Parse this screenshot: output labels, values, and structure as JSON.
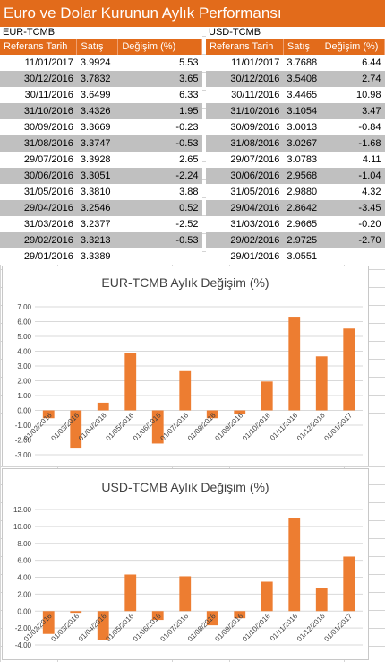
{
  "title": "Euro ve Dolar Kurunun Aylık Performansı",
  "tables": [
    {
      "label": "EUR-TCMB",
      "headers": [
        "Referans Tarih",
        "Satış",
        "Değişim (%)"
      ],
      "rows": [
        {
          "date": "11/01/2017",
          "sell": "3.9924",
          "chg": "5.53"
        },
        {
          "date": "30/12/2016",
          "sell": "3.7832",
          "chg": "3.65"
        },
        {
          "date": "30/11/2016",
          "sell": "3.6499",
          "chg": "6.33"
        },
        {
          "date": "31/10/2016",
          "sell": "3.4326",
          "chg": "1.95"
        },
        {
          "date": "30/09/2016",
          "sell": "3.3669",
          "chg": "-0.23"
        },
        {
          "date": "31/08/2016",
          "sell": "3.3747",
          "chg": "-0.53"
        },
        {
          "date": "29/07/2016",
          "sell": "3.3928",
          "chg": "2.65"
        },
        {
          "date": "30/06/2016",
          "sell": "3.3051",
          "chg": "-2.24"
        },
        {
          "date": "31/05/2016",
          "sell": "3.3810",
          "chg": "3.88"
        },
        {
          "date": "29/04/2016",
          "sell": "3.2546",
          "chg": "0.52"
        },
        {
          "date": "31/03/2016",
          "sell": "3.2377",
          "chg": "-2.52"
        },
        {
          "date": "29/02/2016",
          "sell": "3.3213",
          "chg": "-0.53"
        },
        {
          "date": "29/01/2016",
          "sell": "3.3389",
          "chg": ""
        }
      ]
    },
    {
      "label": "USD-TCMB",
      "headers": [
        "Referans Tarih",
        "Satış",
        "Değişim (%)"
      ],
      "rows": [
        {
          "date": "11/01/2017",
          "sell": "3.7688",
          "chg": "6.44"
        },
        {
          "date": "30/12/2016",
          "sell": "3.5408",
          "chg": "2.74"
        },
        {
          "date": "30/11/2016",
          "sell": "3.4465",
          "chg": "10.98"
        },
        {
          "date": "31/10/2016",
          "sell": "3.1054",
          "chg": "3.47"
        },
        {
          "date": "30/09/2016",
          "sell": "3.0013",
          "chg": "-0.84"
        },
        {
          "date": "31/08/2016",
          "sell": "3.0267",
          "chg": "-1.68"
        },
        {
          "date": "29/07/2016",
          "sell": "3.0783",
          "chg": "4.11"
        },
        {
          "date": "30/06/2016",
          "sell": "2.9568",
          "chg": "-1.04"
        },
        {
          "date": "31/05/2016",
          "sell": "2.9880",
          "chg": "4.32"
        },
        {
          "date": "29/04/2016",
          "sell": "2.8642",
          "chg": "-3.45"
        },
        {
          "date": "31/03/2016",
          "sell": "2.9665",
          "chg": "-0.20"
        },
        {
          "date": "29/02/2016",
          "sell": "2.9725",
          "chg": "-2.70"
        },
        {
          "date": "29/01/2016",
          "sell": "3.0551",
          "chg": ""
        }
      ]
    }
  ],
  "colors": {
    "accent": "#e26b1b",
    "bar": "#ed7d31",
    "row_alt": "#c0c0c0"
  },
  "chart_data": [
    {
      "type": "bar",
      "title": "EUR-TCMB Aylık Değişim (%)",
      "categories": [
        "01/02/2016",
        "01/03/2016",
        "01/04/2016",
        "01/05/2016",
        "01/06/2016",
        "01/07/2016",
        "01/08/2016",
        "01/09/2016",
        "01/10/2016",
        "01/11/2016",
        "01/12/2016",
        "01/01/2017"
      ],
      "values": [
        -0.53,
        -2.52,
        0.52,
        3.88,
        -2.24,
        2.65,
        -0.53,
        -0.23,
        1.95,
        6.33,
        3.65,
        5.53
      ],
      "ylim": [
        -3.0,
        7.0
      ],
      "yticks": [
        "7.00",
        "6.00",
        "5.00",
        "4.00",
        "3.00",
        "2.00",
        "1.00",
        "0.00",
        "-1.00",
        "-2.00",
        "-3.00"
      ],
      "ytick_values": [
        7,
        6,
        5,
        4,
        3,
        2,
        1,
        0,
        -1,
        -2,
        -3
      ],
      "grid": true,
      "xlabel": "",
      "ylabel": ""
    },
    {
      "type": "bar",
      "title": "USD-TCMB Aylık Değişim (%)",
      "categories": [
        "01/02/2016",
        "01/03/2016",
        "01/04/2016",
        "01/05/2016",
        "01/06/2016",
        "01/07/2016",
        "01/08/2016",
        "01/09/2016",
        "01/10/2016",
        "01/11/2016",
        "01/12/2016",
        "01/01/2017"
      ],
      "values": [
        -2.7,
        -0.2,
        -3.45,
        4.32,
        -1.04,
        4.11,
        -1.68,
        -0.84,
        3.47,
        10.98,
        2.74,
        6.44
      ],
      "ylim": [
        -4.0,
        12.0
      ],
      "yticks": [
        "12.00",
        "10.00",
        "8.00",
        "6.00",
        "4.00",
        "2.00",
        "0.00",
        "-2.00",
        "-4.00"
      ],
      "ytick_values": [
        12,
        10,
        8,
        6,
        4,
        2,
        0,
        -2,
        -4
      ],
      "grid": true,
      "xlabel": "",
      "ylabel": ""
    }
  ]
}
